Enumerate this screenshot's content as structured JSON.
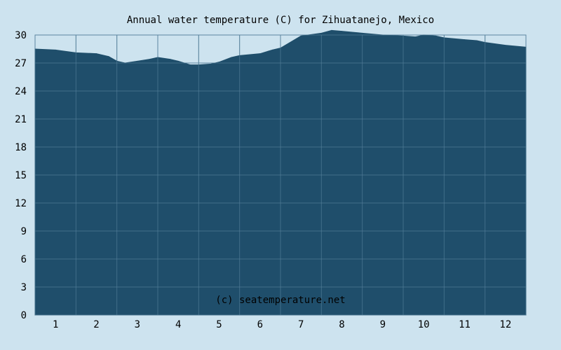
{
  "chart_data": {
    "type": "area",
    "title": "Annual water temperature (C) for Zihuatanejo, Mexico",
    "xlabel": "",
    "ylabel": "",
    "x_ticks": [
      "1",
      "2",
      "3",
      "4",
      "5",
      "6",
      "7",
      "8",
      "9",
      "10",
      "11",
      "12"
    ],
    "y_ticks": [
      "0",
      "3",
      "6",
      "9",
      "12",
      "15",
      "18",
      "21",
      "24",
      "27",
      "30"
    ],
    "ylim": [
      0,
      30
    ],
    "xlim": [
      0.5,
      12.5
    ],
    "grid": true,
    "watermark": "(c) seatemperature.net",
    "series": [
      {
        "x": [
          0.5,
          1.0,
          1.5,
          2.0,
          2.3,
          2.5,
          2.7,
          3.0,
          3.3,
          3.5,
          3.8,
          4.0,
          4.3,
          4.5,
          4.8,
          5.0,
          5.3,
          5.5,
          6.0,
          6.3,
          6.5,
          7.0,
          7.5,
          7.75,
          8.0,
          8.5,
          9.0,
          9.5,
          9.8,
          10.0,
          10.3,
          10.5,
          11.0,
          11.3,
          11.5,
          12.0,
          12.5
        ],
        "values": [
          28.5,
          28.4,
          28.1,
          28.0,
          27.7,
          27.2,
          27.0,
          27.2,
          27.4,
          27.6,
          27.4,
          27.2,
          26.8,
          26.8,
          26.9,
          27.1,
          27.6,
          27.8,
          28.0,
          28.4,
          28.6,
          29.9,
          30.2,
          30.5,
          30.4,
          30.2,
          30.0,
          29.9,
          29.8,
          30.0,
          29.9,
          29.7,
          29.5,
          29.4,
          29.2,
          28.9,
          28.7
        ]
      }
    ],
    "colors": {
      "background": "#cde3ef",
      "area_fill": "#1f4e6b",
      "grid": "#5d86a0",
      "axis_text": "#000000",
      "watermark_text": "#ffffff"
    }
  }
}
